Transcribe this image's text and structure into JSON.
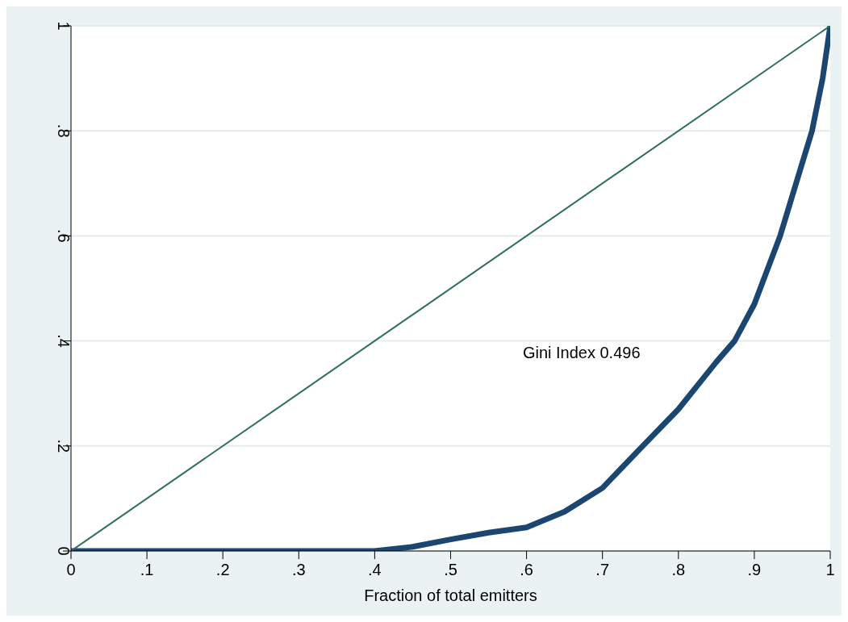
{
  "chart_data": {
    "type": "line",
    "xlabel": "Fraction of total emitters",
    "annotations": [
      "Gini Index 0.496"
    ],
    "series": [
      {
        "color": "#1a4670",
        "x": [
          0,
          0.1,
          0.2,
          0.3,
          0.4,
          0.45,
          0.5,
          0.55,
          0.6,
          0.65,
          0.7,
          0.753,
          0.8,
          0.85,
          0.874,
          0.9,
          0.934,
          0.955,
          0.976,
          0.99,
          1
        ],
        "values": [
          0,
          0,
          0,
          0,
          0,
          0.008,
          0.022,
          0.035,
          0.045,
          0.075,
          0.12,
          0.2,
          0.27,
          0.36,
          0.4,
          0.47,
          0.6,
          0.7,
          0.8,
          0.9,
          1
        ]
      },
      {
        "color": "#2e6e5e",
        "x": [
          0,
          1
        ],
        "values": [
          0,
          1
        ]
      }
    ],
    "xlim": [
      0,
      1
    ],
    "ylim": [
      0,
      1
    ],
    "xticks": [
      0,
      {
        "value": 0.1,
        "label": ".1"
      },
      {
        "value": 0.2,
        "label": ".2"
      },
      {
        "value": 0.3,
        "label": ".3"
      },
      {
        "value": 0.4,
        "label": ".4"
      },
      {
        "value": 0.5,
        "label": ".5"
      },
      {
        "value": 0.6,
        "label": ".6"
      },
      {
        "value": 0.7,
        "label": ".7"
      },
      {
        "value": 0.8,
        "label": ".8"
      },
      {
        "value": 0.9,
        "label": ".9"
      },
      1
    ],
    "yticks": [
      0,
      {
        "value": 0.2,
        "label": ".2"
      },
      {
        "value": 0.4,
        "label": ".4"
      },
      {
        "value": 0.6,
        "label": ".6"
      },
      {
        "value": 0.8,
        "label": ".8"
      },
      1
    ],
    "grid": "y",
    "marker": "none",
    "line_style": "solid"
  }
}
